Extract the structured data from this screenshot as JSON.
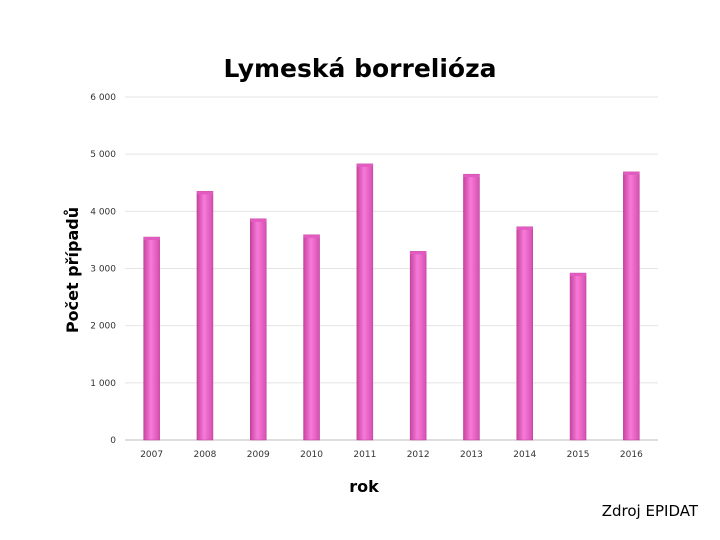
{
  "chart_data": {
    "type": "bar",
    "title": "Lymeská borrelióza",
    "xlabel": "rok",
    "ylabel": "Počet případů",
    "categories": [
      "2007",
      "2008",
      "2009",
      "2010",
      "2011",
      "2012",
      "2013",
      "2014",
      "2015",
      "2016"
    ],
    "values": [
      3550,
      4350,
      3870,
      3590,
      4830,
      3300,
      4650,
      3730,
      2920,
      4690
    ],
    "ylim": [
      0,
      6000
    ],
    "yticks": [
      0,
      1000,
      2000,
      3000,
      4000,
      5000,
      6000
    ],
    "ytick_labels": [
      "0",
      "1 000",
      "2 000",
      "3 000",
      "4 000",
      "5 000",
      "6 000"
    ],
    "grid": true,
    "bar_color": "#f06bd0"
  },
  "source_label": "Zdroj EPIDAT"
}
